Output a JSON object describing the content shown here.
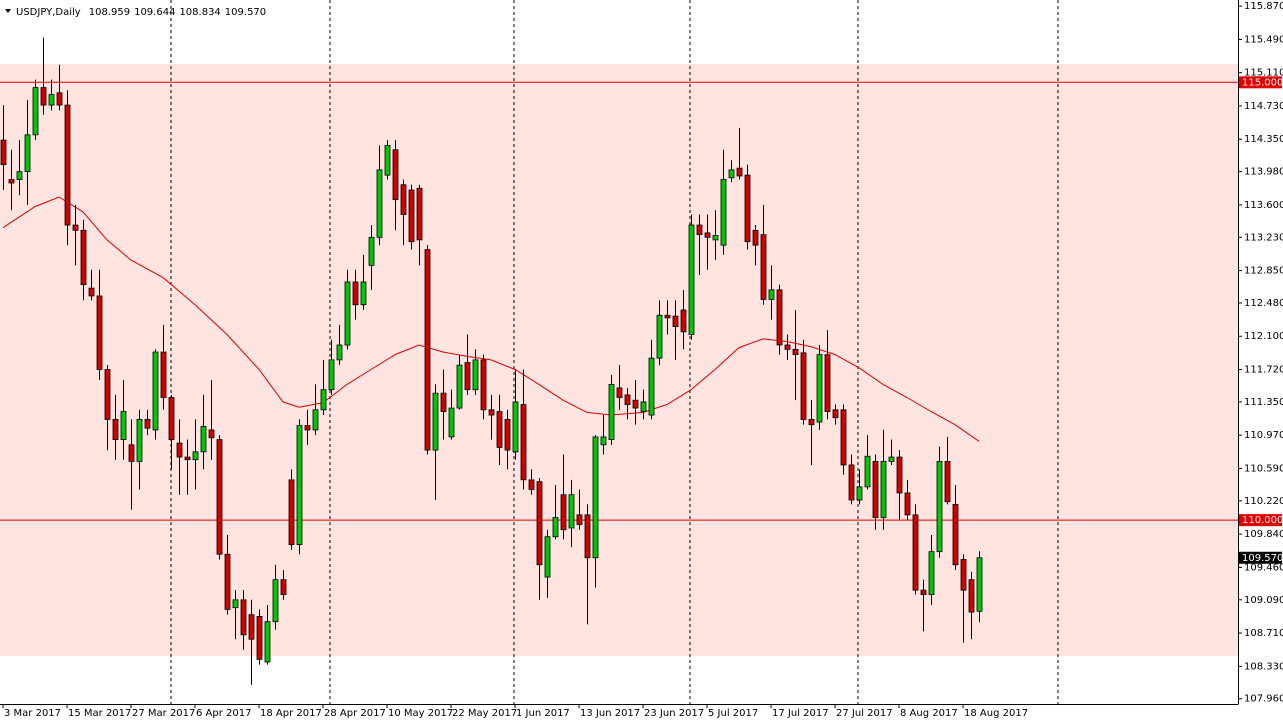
{
  "header": {
    "symbol": "USDJPY,Daily",
    "ohlc": [
      "108.959",
      "109.644",
      "108.834",
      "109.570"
    ]
  },
  "chart_data": {
    "type": "candlestick",
    "categories": [
      "3 Mar 2017",
      null,
      null,
      null,
      null,
      null,
      null,
      null,
      "15 Mar 2017",
      null,
      null,
      null,
      null,
      null,
      null,
      null,
      "27 Mar 2017",
      null,
      null,
      null,
      null,
      null,
      null,
      null,
      "6 Apr 2017",
      null,
      null,
      null,
      null,
      null,
      null,
      null,
      "18 Apr 2017",
      null,
      null,
      null,
      null,
      null,
      null,
      null,
      "28 Apr 2017",
      null,
      null,
      null,
      null,
      null,
      null,
      null,
      "10 May 2017",
      null,
      null,
      null,
      null,
      null,
      null,
      null,
      "22 May 2017",
      null,
      null,
      null,
      null,
      null,
      null,
      null,
      "1 Jun 2017",
      null,
      null,
      null,
      null,
      null,
      null,
      null,
      "13 Jun 2017",
      null,
      null,
      null,
      null,
      null,
      null,
      null,
      "23 Jun 2017",
      null,
      null,
      null,
      null,
      null,
      null,
      null,
      "5 Jul 2017",
      null,
      null,
      null,
      null,
      null,
      null,
      null,
      "17 Jul 2017",
      null,
      null,
      null,
      null,
      null,
      null,
      null,
      "27 Jul 2017",
      null,
      null,
      null,
      null,
      null,
      null,
      null,
      "8 Aug 2017",
      null,
      null,
      null,
      null,
      null,
      null,
      null,
      "18 Aug 2017",
      null,
      null
    ],
    "open": [
      114.34,
      113.89,
      113.89,
      113.98,
      114.4,
      114.94,
      114.74,
      114.88,
      114.74,
      113.37,
      113.31,
      112.65,
      112.56,
      111.72,
      111.15,
      110.92,
      110.86,
      110.67,
      111.15,
      111.03,
      111.92,
      111.4,
      110.88,
      110.72,
      110.69,
      110.78,
      111.03,
      110.92,
      109.61,
      109.0,
      109.09,
      108.92,
      108.9,
      108.38,
      108.84,
      109.32,
      110.46,
      109.72,
      111.08,
      111.03,
      111.26,
      111.49,
      111.83,
      112.0,
      112.72,
      112.46,
      112.91,
      113.23,
      113.94,
      114.23,
      113.83,
      113.77,
      113.79,
      113.09,
      110.8,
      111.45,
      110.95,
      111.28,
      111.8,
      111.49,
      111.83,
      111.26,
      111.24,
      111.15,
      110.78,
      111.32,
      110.46,
      110.44,
      109.35,
      109.81,
      110.29,
      109.91,
      110.06,
      110.06,
      109.57,
      110.86,
      110.92,
      111.51,
      111.43,
      111.37,
      111.24,
      111.2,
      111.85,
      112.34,
      112.33,
      112.4,
      112.12,
      113.37,
      113.28,
      113.2,
      113.14,
      113.91,
      114.02,
      113.94,
      113.31,
      113.26,
      112.52,
      112.63,
      112.0,
      111.95,
      111.91,
      111.15,
      111.12,
      111.89,
      111.26,
      111.26,
      110.63,
      110.23,
      110.38,
      110.67,
      110.03,
      110.67,
      110.72,
      110.31,
      110.06,
      109.2,
      109.15,
      109.64,
      110.67,
      110.18,
      109.55,
      109.32,
      108.959
    ],
    "high": [
      114.74,
      114.23,
      114.34,
      114.8,
      115.03,
      115.51,
      115.03,
      115.2,
      114.91,
      113.6,
      113.43,
      112.86,
      112.86,
      111.77,
      111.43,
      111.6,
      111.15,
      111.26,
      111.26,
      111.95,
      112.23,
      111.43,
      111.15,
      110.92,
      111.15,
      111.43,
      111.6,
      110.97,
      109.83,
      109.2,
      109.2,
      109.09,
      108.98,
      109.03,
      109.49,
      109.43,
      110.58,
      111.15,
      111.26,
      111.55,
      111.83,
      112.06,
      112.23,
      112.86,
      112.86,
      113.03,
      113.37,
      114.28,
      114.34,
      114.34,
      113.89,
      113.83,
      113.83,
      113.14,
      111.55,
      111.72,
      111.49,
      111.89,
      112.12,
      111.95,
      111.89,
      111.43,
      111.43,
      111.26,
      111.72,
      111.72,
      110.58,
      110.48,
      109.89,
      110.4,
      110.75,
      110.46,
      110.35,
      110.18,
      110.97,
      111.2,
      111.66,
      111.77,
      111.51,
      111.6,
      111.49,
      112.06,
      112.51,
      112.51,
      112.51,
      112.63,
      113.49,
      113.49,
      113.49,
      113.54,
      114.23,
      114.11,
      114.48,
      114.06,
      113.37,
      113.6,
      112.91,
      112.69,
      112.12,
      112.4,
      112.06,
      111.37,
      112.0,
      112.17,
      111.32,
      111.32,
      110.75,
      110.58,
      110.97,
      110.75,
      111.03,
      110.92,
      110.8,
      110.46,
      110.18,
      109.32,
      109.83,
      110.84,
      110.95,
      110.4,
      109.61,
      109.41,
      109.644
    ],
    "low": [
      113.77,
      113.54,
      113.71,
      113.6,
      114.34,
      114.63,
      114.68,
      114.68,
      113.14,
      112.91,
      112.51,
      112.51,
      111.6,
      110.8,
      110.69,
      110.69,
      110.12,
      110.35,
      110.97,
      110.92,
      111.26,
      110.58,
      110.29,
      110.29,
      110.35,
      110.58,
      110.69,
      109.55,
      108.92,
      108.64,
      108.52,
      108.12,
      108.35,
      108.35,
      108.75,
      109.09,
      109.66,
      109.61,
      110.86,
      110.97,
      111.2,
      111.43,
      111.77,
      111.95,
      112.29,
      112.4,
      112.63,
      113.14,
      113.89,
      113.31,
      113.14,
      113.09,
      112.91,
      110.75,
      110.23,
      110.92,
      110.92,
      111.26,
      111.43,
      111.43,
      111.15,
      110.92,
      110.63,
      110.58,
      110.69,
      110.35,
      110.29,
      109.09,
      109.11,
      109.78,
      109.78,
      109.69,
      109.89,
      108.81,
      109.23,
      110.75,
      110.86,
      111.26,
      111.15,
      111.09,
      111.15,
      111.15,
      111.77,
      112.12,
      111.83,
      111.95,
      112.06,
      112.8,
      112.86,
      112.97,
      113.03,
      113.86,
      113.89,
      113.09,
      112.91,
      112.46,
      112.29,
      111.89,
      111.83,
      111.37,
      111.09,
      110.63,
      111.03,
      111.15,
      111.09,
      110.52,
      110.18,
      110.18,
      110.35,
      109.89,
      109.89,
      110.63,
      110.0,
      110.0,
      109.15,
      108.73,
      109.03,
      109.57,
      110.18,
      109.43,
      108.6,
      108.64,
      108.834
    ],
    "close": [
      114.06,
      113.85,
      113.98,
      114.4,
      114.94,
      114.74,
      114.86,
      114.74,
      113.37,
      113.31,
      112.69,
      112.56,
      111.72,
      111.15,
      110.92,
      111.24,
      110.67,
      111.15,
      111.05,
      111.92,
      111.4,
      110.92,
      110.72,
      110.69,
      110.78,
      111.07,
      110.94,
      109.61,
      108.98,
      109.09,
      108.69,
      108.64,
      108.41,
      108.84,
      109.32,
      109.15,
      109.72,
      111.08,
      111.03,
      111.26,
      111.49,
      111.83,
      112.0,
      112.72,
      112.46,
      112.72,
      113.23,
      114.0,
      114.28,
      113.66,
      113.49,
      113.18,
      113.2,
      110.8,
      111.45,
      111.24,
      111.28,
      111.77,
      111.49,
      111.83,
      111.26,
      111.2,
      110.83,
      110.8,
      111.35,
      110.46,
      110.35,
      109.49,
      109.81,
      110.03,
      109.89,
      110.29,
      109.95,
      109.57,
      110.95,
      110.95,
      111.55,
      111.4,
      111.32,
      111.28,
      111.35,
      111.85,
      112.34,
      112.31,
      112.21,
      112.15,
      113.37,
      113.26,
      113.23,
      113.25,
      113.89,
      114.0,
      113.93,
      113.18,
      113.14,
      112.52,
      112.63,
      112.0,
      111.95,
      111.89,
      111.15,
      111.09,
      111.89,
      111.24,
      111.17,
      110.63,
      110.23,
      110.38,
      110.73,
      110.03,
      110.67,
      110.72,
      110.31,
      110.06,
      109.2,
      109.15,
      109.64,
      110.67,
      110.21,
      109.49,
      109.2,
      108.95,
      109.57
    ],
    "up_color": "#00c800",
    "down_color": "#d40000",
    "ma": {
      "color": "#e00000",
      "x": [
        0,
        4,
        7,
        10,
        13,
        16,
        20,
        24,
        28,
        32,
        35,
        37,
        40,
        43,
        46,
        49,
        52,
        55,
        58,
        61,
        64,
        67,
        70,
        73,
        76,
        80,
        83,
        86,
        89,
        92,
        95,
        98,
        101,
        104,
        107,
        110,
        113,
        116,
        119,
        122
      ],
      "values": [
        113.34,
        113.58,
        113.69,
        113.52,
        113.2,
        112.97,
        112.77,
        112.46,
        112.12,
        111.72,
        111.35,
        111.29,
        111.34,
        111.55,
        111.72,
        111.89,
        112.0,
        111.92,
        111.87,
        111.83,
        111.72,
        111.55,
        111.37,
        111.23,
        111.2,
        111.23,
        111.32,
        111.49,
        111.72,
        111.97,
        112.07,
        112.04,
        111.98,
        111.89,
        111.74,
        111.55,
        111.4,
        111.24,
        111.09,
        110.9
      ]
    },
    "zone": {
      "from": 108.45,
      "to": 115.21,
      "color": "#ffe4e1"
    },
    "hlines": [
      {
        "value": 115,
        "label": "115.000"
      },
      {
        "value": 110,
        "label": "110.000"
      }
    ],
    "hline_color": "#e00000",
    "ylim": [
      107.9,
      115.94
    ],
    "yticks": [
      {
        "value": 115.87,
        "label": "115.870"
      },
      {
        "value": 115.49,
        "label": "115.490"
      },
      {
        "value": 115.11,
        "label": "115.110"
      },
      {
        "value": 114.73,
        "label": "114.730"
      },
      {
        "value": 114.35,
        "label": "114.350"
      },
      {
        "value": 113.98,
        "label": "113.980"
      },
      {
        "value": 113.6,
        "label": "113.600"
      },
      {
        "value": 113.23,
        "label": "113.230"
      },
      {
        "value": 112.85,
        "label": "112.850"
      },
      {
        "value": 112.48,
        "label": "112.480"
      },
      {
        "value": 112.1,
        "label": "112.100"
      },
      {
        "value": 111.72,
        "label": "111.720"
      },
      {
        "value": 111.35,
        "label": "111.350"
      },
      {
        "value": 110.97,
        "label": "110.970"
      },
      {
        "value": 110.59,
        "label": "110.590"
      },
      {
        "value": 110.22,
        "label": "110.220"
      },
      {
        "value": 109.84,
        "label": "109.840"
      },
      {
        "value": 109.46,
        "label": "109.460"
      },
      {
        "value": 109.09,
        "label": "109.090"
      },
      {
        "value": 108.71,
        "label": "108.710"
      },
      {
        "value": 108.33,
        "label": "108.330"
      },
      {
        "value": 107.96,
        "label": "107.960"
      }
    ],
    "grid": false
  }
}
